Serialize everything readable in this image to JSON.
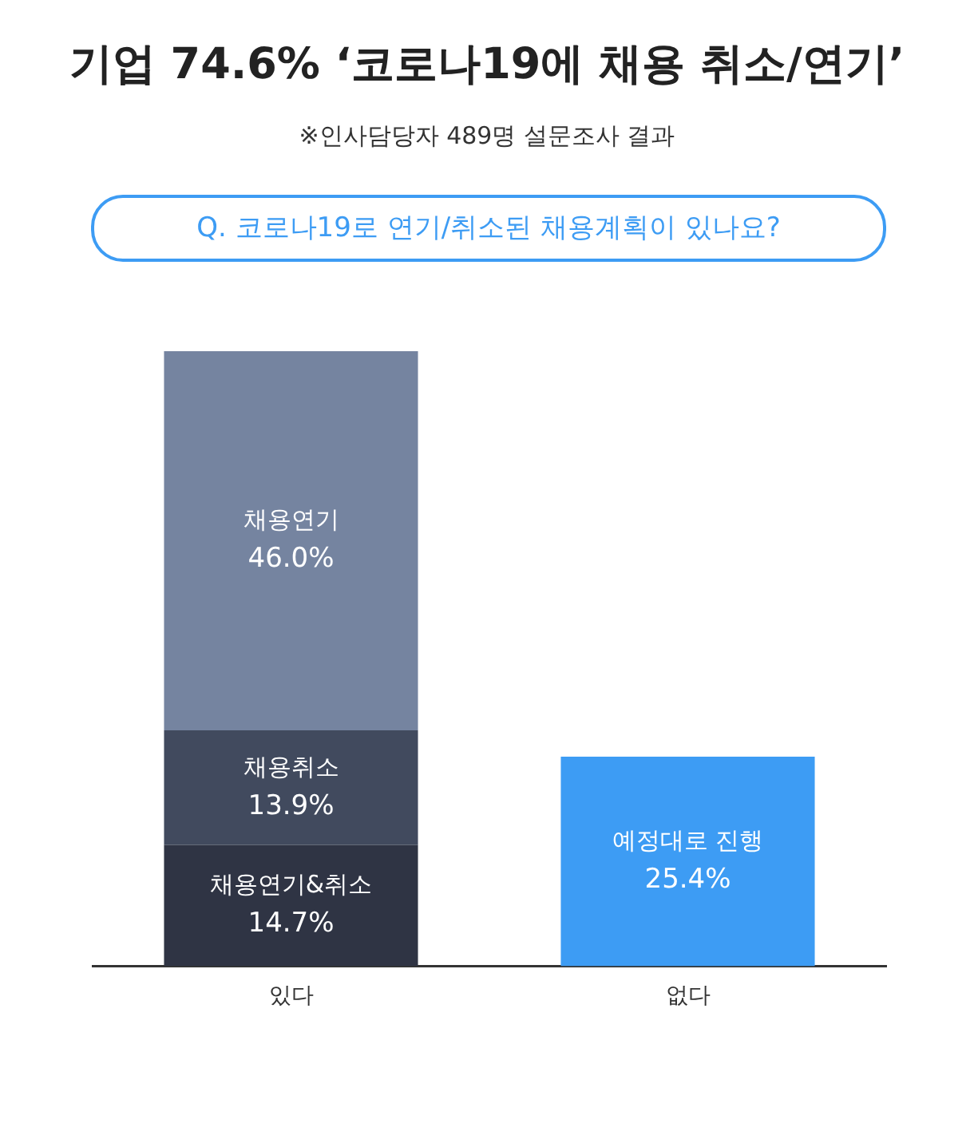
{
  "chart_data": {
    "type": "bar",
    "title": "기업 74.6% ‘코로나19에 채용 취소/연기’",
    "subtitle": "※인사담당자 489명 설문조사 결과",
    "annotations": [
      "Q. 코로나19로 연기/취소된 채용계획이 있나요?"
    ],
    "categories": [
      "있다",
      "없다"
    ],
    "stacked": true,
    "legend": false,
    "grid": false,
    "tick_labels": "x",
    "data_labels": true,
    "series": [
      {
        "name": "채용연기&취소",
        "color": "#2f3444",
        "values": [
          14.7,
          null
        ],
        "value_labels": [
          "14.7%",
          null
        ]
      },
      {
        "name": "채용취소",
        "color": "#414a5e",
        "values": [
          13.9,
          null
        ],
        "value_labels": [
          "13.9%",
          null
        ]
      },
      {
        "name": "채용연기",
        "color": "#7584a0",
        "values": [
          46.0,
          null
        ],
        "value_labels": [
          "46.0%",
          null
        ]
      },
      {
        "name": "예정대로 진행",
        "color": "#3d9cf4",
        "values": [
          null,
          25.4
        ],
        "value_labels": [
          null,
          "25.4%"
        ]
      }
    ]
  }
}
